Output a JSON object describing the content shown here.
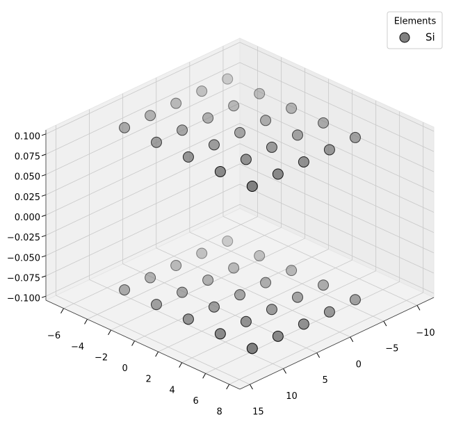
{
  "chart_data": {
    "type": "scatter3d",
    "legend_title": "Elements",
    "legend": "upper right",
    "series": [
      {
        "name": "Si",
        "color": "#808080",
        "x": [
          -5.7,
          -5.7,
          -5.7,
          -5.7,
          -5.7,
          -1.85,
          -1.85,
          -1.85,
          -1.85,
          -1.85,
          2.0,
          2.0,
          2.0,
          2.0,
          2.0,
          5.85,
          5.85,
          5.85,
          5.85,
          5.85,
          9.7,
          9.7,
          9.7,
          9.7,
          9.7,
          -5.7,
          -5.7,
          -5.7,
          -5.7,
          -5.7,
          -1.85,
          -1.85,
          -1.85,
          -1.85,
          -1.85,
          2.0,
          2.0,
          2.0,
          2.0,
          2.0,
          5.85,
          5.85,
          5.85,
          5.85,
          5.85,
          9.7,
          9.7,
          9.7,
          9.7,
          9.7
        ],
        "y": [
          -4.7,
          -2.0,
          0.7,
          3.4,
          6.1,
          -4.7,
          -2.0,
          0.7,
          3.4,
          6.1,
          -4.7,
          -2.0,
          0.7,
          3.4,
          6.1,
          -4.7,
          -2.0,
          0.7,
          3.4,
          6.1,
          -4.7,
          -2.0,
          0.7,
          3.4,
          6.1,
          -4.7,
          -2.0,
          0.7,
          3.4,
          6.1,
          -4.7,
          -2.0,
          0.7,
          3.4,
          6.1,
          -4.7,
          -2.0,
          0.7,
          3.4,
          6.1,
          -4.7,
          -2.0,
          0.7,
          3.4,
          6.1,
          -4.7,
          -2.0,
          0.7,
          3.4,
          6.1
        ],
        "z": [
          -0.1,
          -0.1,
          -0.1,
          -0.1,
          -0.1,
          -0.1,
          -0.1,
          -0.1,
          -0.1,
          -0.1,
          -0.1,
          -0.1,
          -0.1,
          -0.1,
          -0.1,
          -0.1,
          -0.1,
          -0.1,
          -0.1,
          -0.1,
          -0.1,
          -0.1,
          -0.1,
          -0.1,
          -0.1,
          0.1,
          0.1,
          0.1,
          0.1,
          0.1,
          0.1,
          0.1,
          0.1,
          0.1,
          0.1,
          0.1,
          0.1,
          0.1,
          0.1,
          0.1,
          0.1,
          0.1,
          0.1,
          0.1,
          0.1,
          0.1,
          0.1,
          0.1,
          0.1,
          0.1
        ]
      }
    ],
    "xlim": [
      -12.5,
      16.5
    ],
    "xticks": [
      {
        "value": -10,
        "label": "−10"
      },
      {
        "value": -5,
        "label": "−5"
      },
      0,
      5,
      10,
      15
    ],
    "ylim": [
      -7.5,
      8.9
    ],
    "yticks": [
      {
        "value": -6,
        "label": "−6"
      },
      {
        "value": -4,
        "label": "−4"
      },
      {
        "value": -2,
        "label": "−2"
      },
      0,
      2,
      4,
      6,
      8
    ],
    "zlim": [
      -0.105,
      0.105
    ],
    "zticks": [
      {
        "value": -0.1,
        "label": "−0.100"
      },
      {
        "value": -0.075,
        "label": "−0.075"
      },
      {
        "value": -0.05,
        "label": "−0.050"
      },
      {
        "value": -0.025,
        "label": "−0.025"
      },
      {
        "value": 0,
        "label": "0.000"
      },
      {
        "value": 0.025,
        "label": "0.025"
      },
      {
        "value": 0.05,
        "label": "0.050"
      },
      {
        "value": 0.075,
        "label": "0.075"
      },
      {
        "value": 0.1,
        "label": "0.100"
      }
    ],
    "grid": true
  }
}
